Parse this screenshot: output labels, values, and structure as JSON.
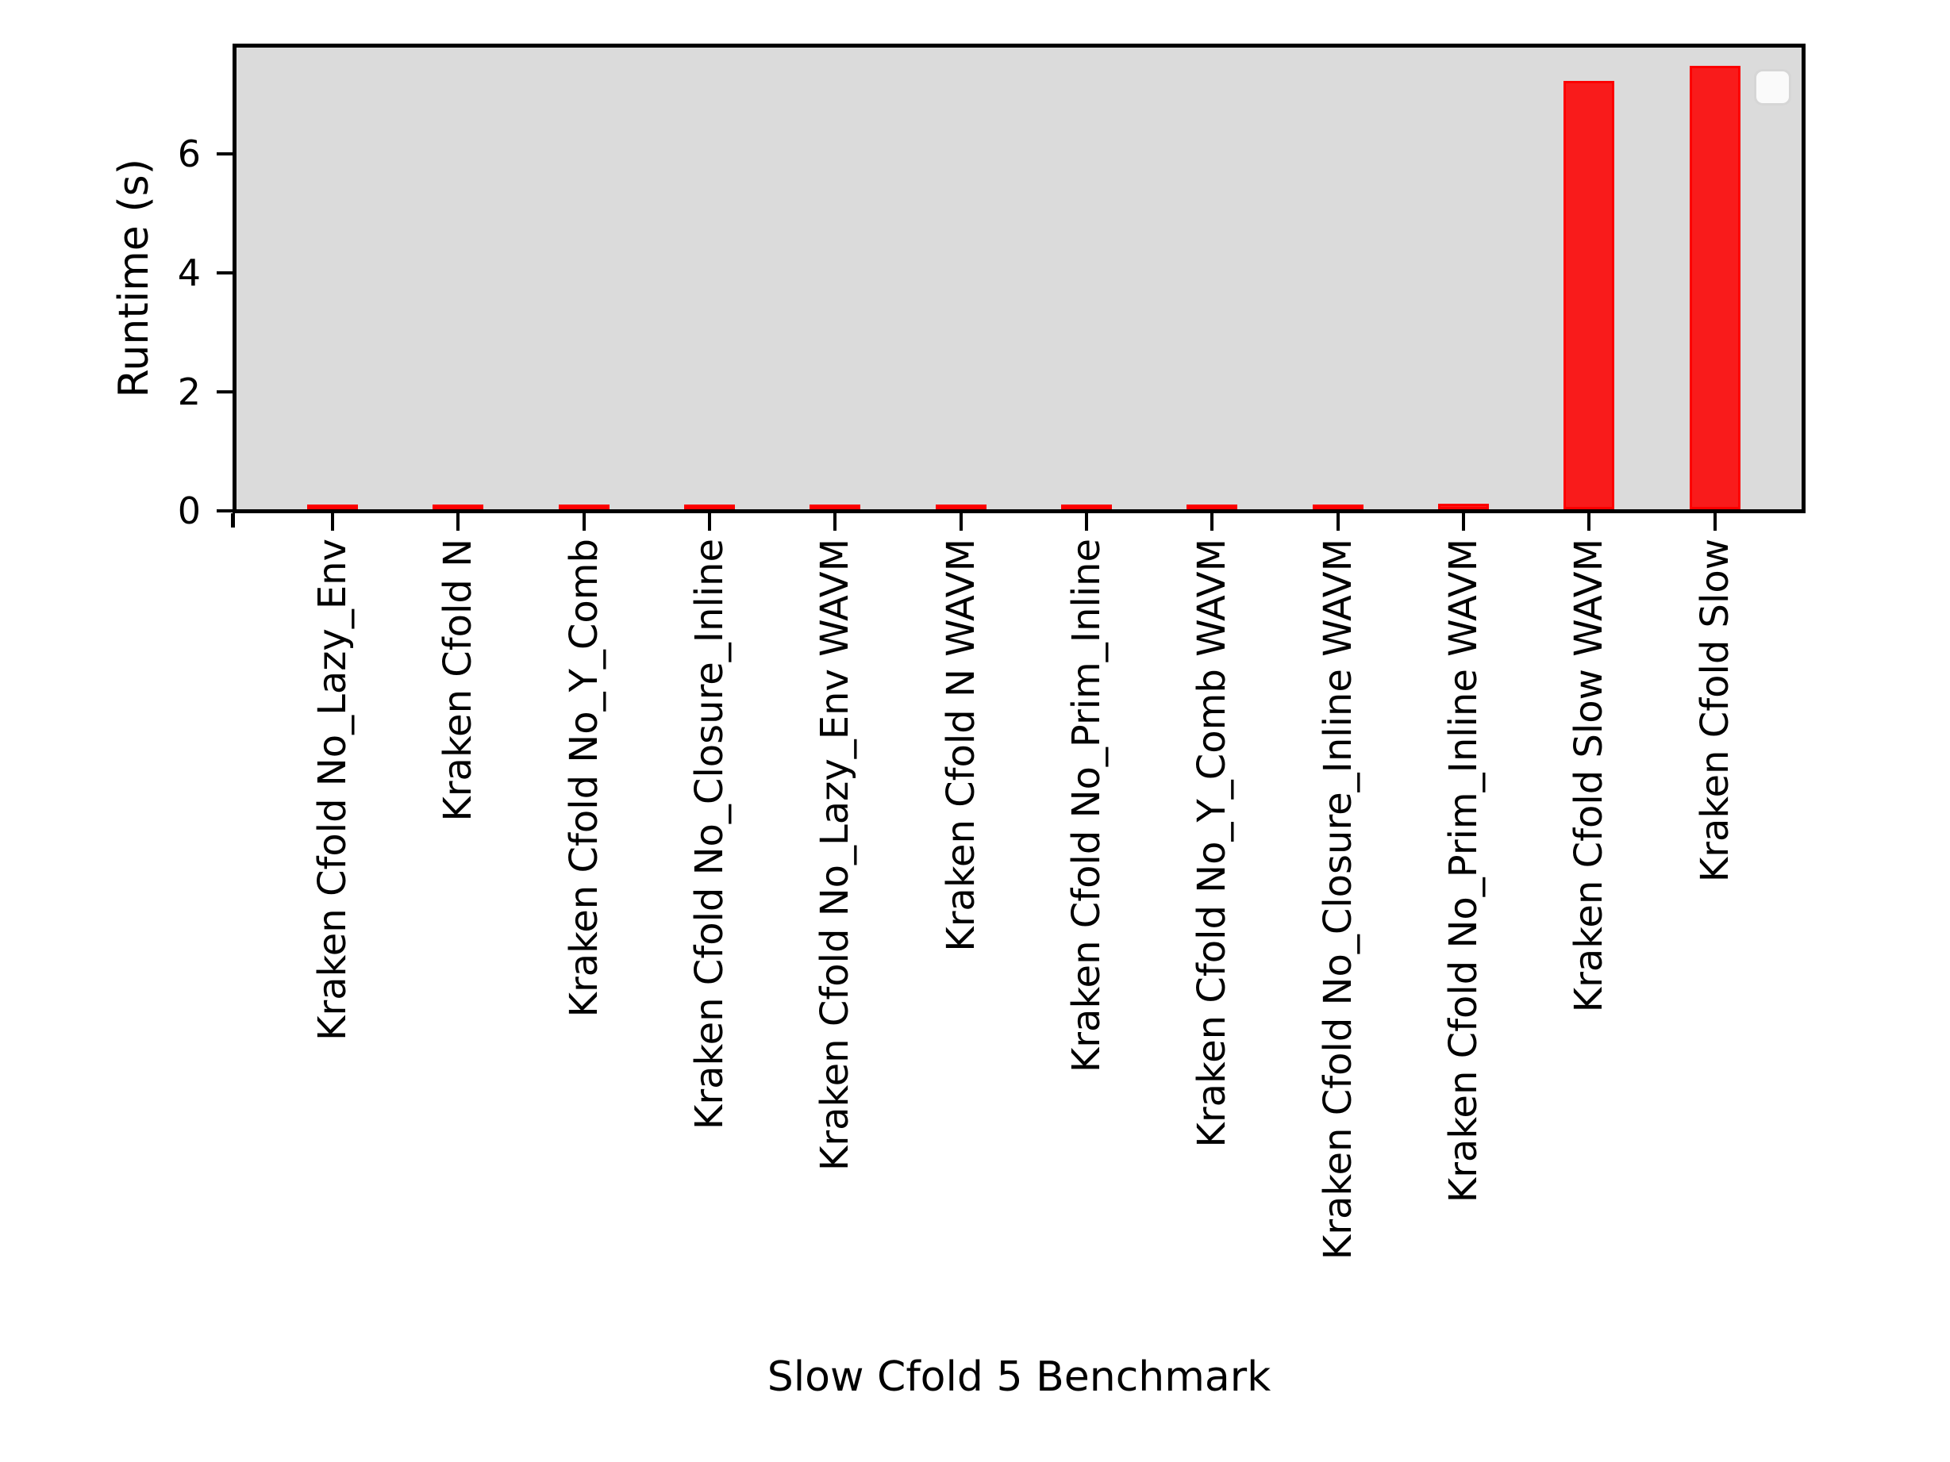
{
  "figure": {
    "background": "#ffffff"
  },
  "chart_data": {
    "type": "bar",
    "title": "",
    "xlabel": "Slow Cfold 5 Benchmark",
    "ylabel": "Runtime (s)",
    "categories": [
      "Kraken Cfold No_Lazy_Env",
      "Kraken Cfold N",
      "Kraken Cfold No_Y_Comb",
      "Kraken Cfold No_Closure_Inline",
      "Kraken Cfold No_Lazy_Env WAVM",
      "Kraken Cfold N WAVM",
      "Kraken Cfold No_Prim_Inline",
      "Kraken Cfold No_Y_Comb WAVM",
      "Kraken Cfold No_Closure_Inline WAVM",
      "Kraken Cfold No_Prim_Inline WAVM",
      "Kraken Cfold Slow WAVM",
      "Kraken Cfold Slow"
    ],
    "values": [
      0.05,
      0.05,
      0.04,
      0.06,
      0.06,
      0.07,
      0.06,
      0.06,
      0.07,
      0.1,
      7.2,
      7.46
    ],
    "ylim": [
      0,
      7.83
    ],
    "yticks": [
      0,
      2,
      4,
      6
    ],
    "xtick_rotation_deg": 90,
    "grid": false,
    "legend": {
      "visible": true,
      "entries": [],
      "position": "upper right"
    },
    "colors": {
      "bar_fill": "#f91b1b",
      "bar_edge": "#fc0000",
      "plot_background": "#dbdbdb",
      "spine": "#000000",
      "text": "#000000"
    }
  }
}
